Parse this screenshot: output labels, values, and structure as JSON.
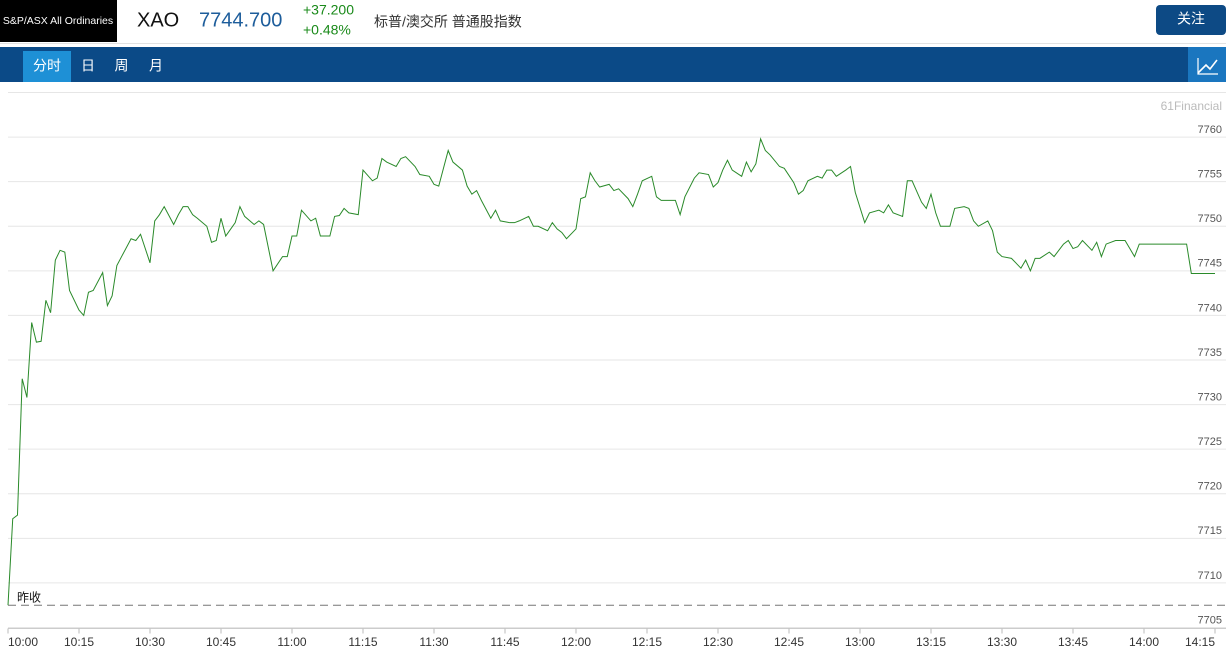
{
  "header": {
    "logo": "S&P/ASX All Ordinaries",
    "symbol": "XAO",
    "price": "7744.700",
    "change": "+37.200",
    "change_pct": "+0.48%",
    "name": "标普/澳交所 普通股指数",
    "follow_button": "关注"
  },
  "tabs": {
    "items": [
      "分时",
      "日",
      "周",
      "月"
    ],
    "active": 0
  },
  "chart_data": {
    "type": "line",
    "watermark": "61Financial",
    "color": "#2a8a2a",
    "grid": true,
    "x": [
      "10:00",
      "10:01",
      "10:02",
      "10:03",
      "10:04",
      "10:05",
      "10:06",
      "10:07",
      "10:08",
      "10:09",
      "10:10",
      "10:11",
      "10:12",
      "10:13",
      "10:15",
      "10:16",
      "10:17",
      "10:18",
      "10:20",
      "10:21",
      "10:22",
      "10:23",
      "10:24",
      "10:26",
      "10:27",
      "10:28",
      "10:30",
      "10:31",
      "10:32",
      "10:33",
      "10:35",
      "10:36",
      "10:37",
      "10:38",
      "10:39",
      "10:40",
      "10:42",
      "10:43",
      "10:44",
      "10:45",
      "10:46",
      "10:48",
      "10:49",
      "10:50",
      "10:52",
      "10:53",
      "10:54",
      "10:56",
      "10:58",
      "10:59",
      "11:00",
      "11:01",
      "11:02",
      "11:04",
      "11:05",
      "11:06",
      "11:08",
      "11:09",
      "11:10",
      "11:11",
      "11:12",
      "11:14",
      "11:15",
      "11:17",
      "11:18",
      "11:19",
      "11:20",
      "11:22",
      "11:23",
      "11:24",
      "11:26",
      "11:27",
      "11:29",
      "11:30",
      "11:31",
      "11:32",
      "11:33",
      "11:34",
      "11:36",
      "11:37",
      "11:38",
      "11:39",
      "11:40",
      "11:42",
      "11:43",
      "11:44",
      "11:46",
      "11:47",
      "11:48",
      "11:50",
      "11:51",
      "11:52",
      "11:54",
      "11:55",
      "11:56",
      "11:57",
      "11:58",
      "12:00",
      "12:01",
      "12:02",
      "12:03",
      "12:04",
      "12:05",
      "12:07",
      "12:08",
      "12:09",
      "12:11",
      "12:12",
      "12:13",
      "12:14",
      "12:16",
      "12:17",
      "12:18",
      "12:19",
      "12:21",
      "12:22",
      "12:23",
      "12:25",
      "12:26",
      "12:28",
      "12:29",
      "12:30",
      "12:31",
      "12:32",
      "12:33",
      "12:35",
      "12:36",
      "12:37",
      "12:38",
      "12:39",
      "12:40",
      "12:41",
      "12:43",
      "12:44",
      "12:46",
      "12:47",
      "12:48",
      "12:49",
      "12:51",
      "12:52",
      "12:53",
      "12:54",
      "12:55",
      "12:57",
      "12:58",
      "12:59",
      "13:01",
      "13:02",
      "13:04",
      "13:05",
      "13:06",
      "13:07",
      "13:09",
      "13:10",
      "13:11",
      "13:13",
      "13:14",
      "13:15",
      "13:16",
      "13:17",
      "13:19",
      "13:20",
      "13:22",
      "13:23",
      "13:24",
      "13:25",
      "13:27",
      "13:28",
      "13:29",
      "13:30",
      "13:32",
      "13:34",
      "13:35",
      "13:36",
      "13:37",
      "13:38",
      "13:40",
      "13:41",
      "13:43",
      "13:44",
      "13:45",
      "13:46",
      "13:47",
      "13:49",
      "13:50",
      "13:51",
      "13:52",
      "13:54",
      "13:56",
      "13:57",
      "13:58",
      "13:59",
      "14:09",
      "14:10",
      "14:15"
    ],
    "values": [
      7707.5,
      7717.2,
      7717.6,
      7732.9,
      7730.8,
      7739.2,
      7737.0,
      7737.1,
      7741.7,
      7740.3,
      7746.2,
      7747.3,
      7747.1,
      7742.8,
      7740.6,
      7740.0,
      7742.6,
      7742.8,
      7744.8,
      7741.1,
      7742.2,
      7745.6,
      7746.6,
      7748.6,
      7748.4,
      7749.1,
      7745.9,
      7750.6,
      7751.3,
      7752.2,
      7750.2,
      7751.3,
      7752.2,
      7752.2,
      7751.3,
      7750.9,
      7750.0,
      7748.2,
      7748.4,
      7750.9,
      7748.9,
      7750.4,
      7752.2,
      7751.1,
      7750.2,
      7750.6,
      7750.2,
      7745.0,
      7746.6,
      7746.6,
      7748.9,
      7748.9,
      7751.8,
      7750.6,
      7750.9,
      7748.9,
      7748.9,
      7751.1,
      7751.2,
      7752.0,
      7751.5,
      7751.3,
      7756.3,
      7755.1,
      7755.4,
      7757.6,
      7757.2,
      7756.7,
      7757.6,
      7757.8,
      7756.7,
      7755.8,
      7755.6,
      7754.7,
      7754.5,
      7756.5,
      7758.5,
      7757.2,
      7756.3,
      7754.5,
      7753.6,
      7754.0,
      7752.9,
      7750.9,
      7751.8,
      7750.6,
      7750.4,
      7750.4,
      7750.6,
      7751.1,
      7750.0,
      7750.0,
      7749.5,
      7750.4,
      7749.7,
      7749.3,
      7748.6,
      7749.7,
      7753.1,
      7753.3,
      7756.0,
      7755.1,
      7754.4,
      7754.7,
      7754.0,
      7754.2,
      7753.1,
      7752.2,
      7753.6,
      7755.1,
      7755.6,
      7753.3,
      7752.9,
      7752.9,
      7752.9,
      7751.3,
      7753.3,
      7755.4,
      7756.0,
      7755.8,
      7754.4,
      7754.9,
      7756.3,
      7757.4,
      7756.3,
      7755.6,
      7757.2,
      7756.1,
      7757.0,
      7759.8,
      7758.5,
      7758.0,
      7756.7,
      7756.5,
      7754.9,
      7753.6,
      7754.0,
      7755.1,
      7755.6,
      7755.4,
      7756.3,
      7756.3,
      7755.6,
      7756.3,
      7756.7,
      7753.8,
      7750.4,
      7751.5,
      7751.8,
      7751.5,
      7752.4,
      7751.5,
      7751.1,
      7755.1,
      7755.1,
      7752.7,
      7752.0,
      7753.6,
      7751.5,
      7750.0,
      7750.0,
      7752.0,
      7752.2,
      7752.0,
      7750.6,
      7750.0,
      7750.6,
      7749.5,
      7747.1,
      7746.6,
      7746.4,
      7745.3,
      7746.2,
      7745.0,
      7746.4,
      7746.4,
      7747.1,
      7746.6,
      7748.0,
      7748.4,
      7747.5,
      7747.7,
      7748.4,
      7747.3,
      7748.2,
      7746.6,
      7748.0,
      7748.4,
      7748.4,
      7747.5,
      7746.6,
      7748.0,
      7748.0,
      7744.7,
      7744.7
    ],
    "xlim": [
      "10:00",
      "14:15"
    ],
    "xticks": [
      "10:00",
      "10:15",
      "10:30",
      "10:45",
      "11:00",
      "11:15",
      "11:30",
      "11:45",
      "12:00",
      "12:15",
      "12:30",
      "12:45",
      "13:00",
      "13:15",
      "13:30",
      "13:45",
      "14:00",
      "14:15"
    ],
    "ylim": [
      7705,
      7765
    ],
    "yticks": [
      7705,
      7710,
      7715,
      7720,
      7725,
      7730,
      7735,
      7740,
      7745,
      7750,
      7755,
      7760
    ],
    "reference_line": {
      "label": "昨收",
      "value": 7707.5
    }
  }
}
